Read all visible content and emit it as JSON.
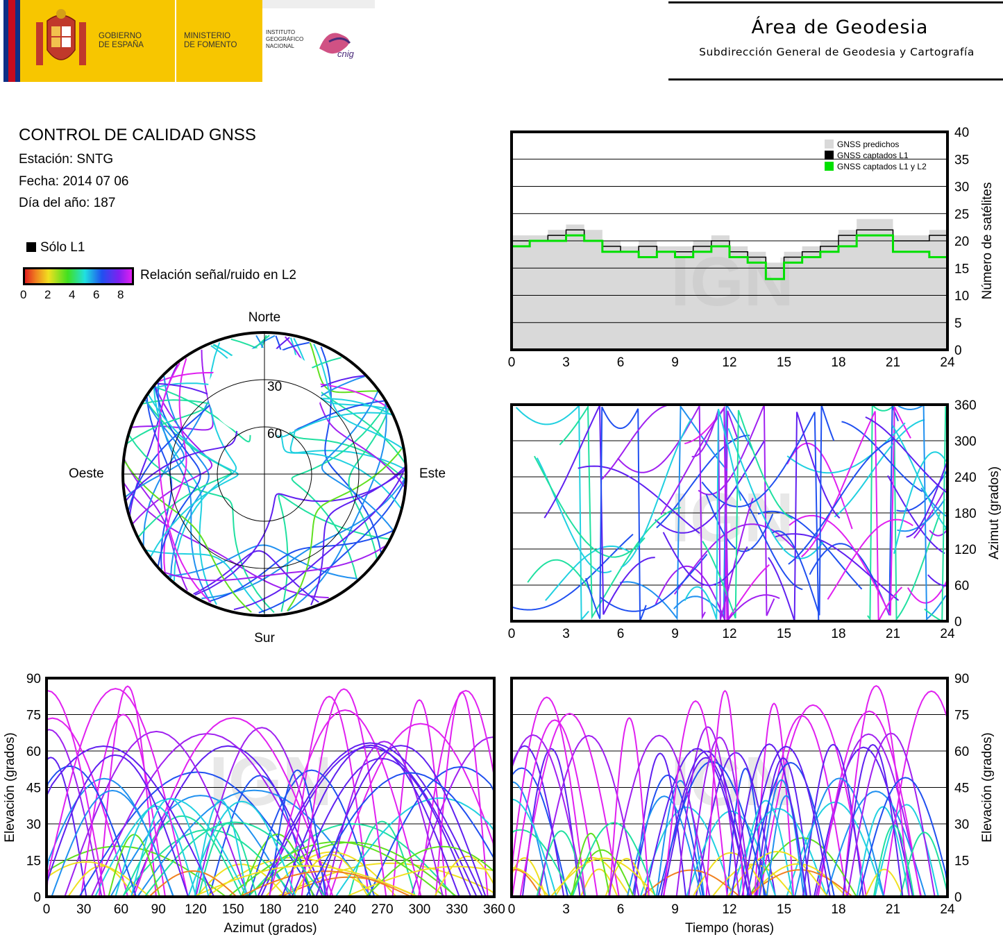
{
  "header": {
    "gov_line1": "GOBIERNO",
    "gov_line2": "DE ESPAÑA",
    "min_line1": "MINISTERIO",
    "min_line2": "DE FOMENTO",
    "ign_line1": "INSTITUTO",
    "ign_line2": "GEOGRÁFICO",
    "ign_line3": "NACIONAL",
    "cnig_logo_text": "cnig",
    "title": "Área de Geodesia",
    "subtitle": "Subdirección General de Geodesia y Cartografía"
  },
  "info": {
    "title": "CONTROL DE CALIDAD GNSS",
    "station": "Estación: SNTG",
    "date": "Fecha: 2014 07 06",
    "doy": "Día del año: 187"
  },
  "legend": {
    "l1_only": "Sólo L1",
    "snr_label": "Relación señal/ruido en L2",
    "snr_ticks": [
      "0",
      "2",
      "4",
      "6",
      "8"
    ],
    "colors": {
      "l1_only": "#000000",
      "low": "#e02020",
      "mid": "#20e0e0",
      "high": "#e020f0"
    }
  },
  "watermark": "IGN",
  "chart_data": [
    {
      "id": "satellites",
      "type": "area",
      "xlabel": "",
      "ylabel": "Número de satélites",
      "xlim": [
        0,
        24
      ],
      "ylim": [
        0,
        40
      ],
      "xticks": [
        "0",
        "3",
        "6",
        "9",
        "12",
        "15",
        "18",
        "21",
        "24"
      ],
      "yticks": [
        "0",
        "5",
        "10",
        "15",
        "20",
        "25",
        "30",
        "35",
        "40"
      ],
      "legend_position": "top-right",
      "x": [
        0,
        1,
        2,
        3,
        4,
        5,
        6,
        7,
        8,
        9,
        10,
        11,
        12,
        13,
        14,
        15,
        16,
        17,
        18,
        19,
        20,
        21,
        22,
        23,
        24
      ],
      "series": [
        {
          "name": "GNSS predichos",
          "color": "#d9d9d9",
          "values": [
            21,
            21,
            22,
            23,
            22,
            20,
            19,
            20,
            19,
            19,
            20,
            21,
            19,
            18,
            16,
            18,
            19,
            20,
            22,
            24,
            24,
            21,
            21,
            22,
            21
          ]
        },
        {
          "name": "GNSS captados L1",
          "color": "#000000",
          "values": [
            20,
            20,
            21,
            22,
            20,
            19,
            18,
            19,
            18,
            18,
            19,
            20,
            18,
            17,
            15,
            17,
            18,
            19,
            21,
            22,
            22,
            20,
            20,
            21,
            20
          ]
        },
        {
          "name": "GNSS captados L1 y L2",
          "color": "#00e000",
          "values": [
            19,
            20,
            20,
            21,
            20,
            18,
            18,
            17,
            18,
            17,
            18,
            19,
            17,
            16,
            13,
            16,
            17,
            18,
            19,
            21,
            21,
            18,
            18,
            17,
            18
          ]
        }
      ]
    },
    {
      "id": "azimuth-time",
      "type": "scatter",
      "xlabel": "",
      "ylabel": "Azimut (grados)",
      "xlim": [
        0,
        24
      ],
      "ylim": [
        0,
        360
      ],
      "xticks": [
        "0",
        "3",
        "6",
        "9",
        "12",
        "15",
        "18",
        "21",
        "24"
      ],
      "yticks": [
        "0",
        "60",
        "120",
        "180",
        "240",
        "300",
        "360"
      ]
    },
    {
      "id": "skyplot",
      "type": "scatter",
      "labels": {
        "north": "Norte",
        "south": "Sur",
        "east": "Este",
        "west": "Oeste"
      },
      "rings": [
        "30",
        "60"
      ]
    },
    {
      "id": "elevation-azimuth",
      "type": "scatter",
      "xlabel": "Azimut (grados)",
      "ylabel": "Elevación (grados)",
      "xlim": [
        0,
        360
      ],
      "ylim": [
        0,
        90
      ],
      "xticks": [
        "0",
        "30",
        "60",
        "90",
        "120",
        "150",
        "180",
        "210",
        "240",
        "270",
        "300",
        "330",
        "360"
      ],
      "yticks": [
        "0",
        "15",
        "30",
        "45",
        "60",
        "75",
        "90"
      ]
    },
    {
      "id": "elevation-time",
      "type": "scatter",
      "xlabel": "Tiempo (horas)",
      "ylabel": "Elevación (grados)",
      "xlim": [
        0,
        24
      ],
      "ylim": [
        0,
        90
      ],
      "xticks": [
        "0",
        "3",
        "6",
        "9",
        "12",
        "15",
        "18",
        "21",
        "24"
      ],
      "yticks": [
        "0",
        "15",
        "30",
        "45",
        "60",
        "75",
        "90"
      ]
    }
  ]
}
